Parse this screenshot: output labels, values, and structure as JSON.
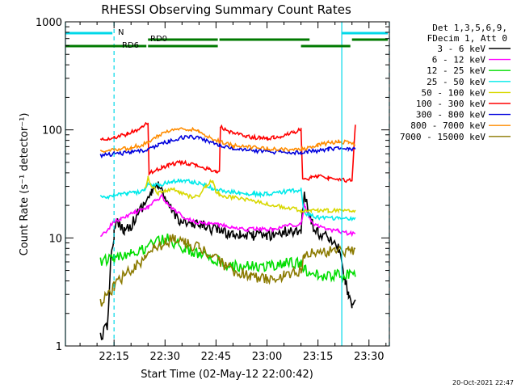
{
  "chart_data": {
    "type": "line",
    "title": "RHESSI Observing Summary Count Rates",
    "xlabel": "Start Time (02-May-12 22:00:42)",
    "ylabel": "Count Rate (s⁻¹ detector⁻¹)",
    "y_scale": "log",
    "ylim": [
      1,
      1000
    ],
    "x_unit": "minutes after 22:00",
    "xlim": [
      0.7,
      96
    ],
    "x_ticks": [
      15,
      30,
      45,
      60,
      75,
      90
    ],
    "x_tick_labels": [
      "22:15",
      "22:30",
      "22:45",
      "23:00",
      "23:15",
      "23:30"
    ],
    "y_ticks": [
      1,
      10,
      100,
      1000
    ],
    "y_tick_labels": [
      "1",
      "10",
      "100",
      "1000"
    ],
    "legend_header": [
      "Det 1,3,5,6,9,",
      "FDecim 1, Att 0"
    ],
    "legend_position": "right",
    "x_markers": [
      {
        "label": "N",
        "color": "#00d8e8",
        "bar_segments": [
          [
            0.7,
            15
          ],
          [
            82,
            96
          ]
        ],
        "solid_lines": [
          0.7,
          82
        ],
        "dashed_lines": [
          15,
          96
        ]
      },
      {
        "label": "RD0",
        "color": "#007a00",
        "bar_segments": [
          [
            25,
            46
          ],
          [
            46,
            73
          ],
          [
            85,
            96
          ]
        ],
        "solid_lines": [],
        "dashed_lines": []
      },
      {
        "label": "RD6",
        "color": "#007a00",
        "bar_segments": [
          [
            0.7,
            25
          ],
          [
            25,
            46
          ],
          [
            70,
            85
          ]
        ],
        "solid_lines": [],
        "dashed_lines": []
      }
    ],
    "series": [
      {
        "name": "3 - 6 keV",
        "color": "#000000",
        "x": [
          11,
          13,
          14,
          15,
          16,
          18,
          20,
          22,
          24,
          26,
          28,
          30,
          32,
          34,
          36,
          38,
          40,
          42,
          44,
          46,
          48,
          50,
          52,
          54,
          56,
          58,
          60,
          62,
          64,
          66,
          68,
          70,
          71,
          73,
          75,
          78,
          81,
          83,
          84,
          85,
          86
        ],
        "y": [
          1.2,
          1.5,
          6,
          11,
          14,
          12,
          13,
          17,
          21,
          26,
          32,
          22,
          18,
          15,
          14,
          13,
          13,
          13,
          12,
          12,
          11,
          11,
          11,
          10.5,
          10.5,
          10.5,
          10.5,
          11,
          11,
          11.5,
          11.5,
          12,
          25,
          14,
          11,
          10,
          8,
          4,
          3,
          2.5,
          2.5
        ]
      },
      {
        "name": "6 - 12 keV",
        "color": "#ff00ff",
        "x": [
          11,
          13,
          15,
          17,
          19,
          21,
          23,
          25,
          27,
          29,
          31,
          33,
          35,
          37,
          39,
          41,
          43,
          45,
          46,
          48,
          50,
          52,
          54,
          56,
          58,
          60,
          62,
          64,
          66,
          68,
          70,
          71,
          73,
          75,
          78,
          81,
          84,
          86
        ],
        "y": [
          10,
          12,
          14,
          15,
          16,
          17,
          18,
          19,
          22,
          24,
          20,
          18,
          16,
          15,
          14,
          14,
          13.5,
          13.5,
          13,
          13,
          12.5,
          12.5,
          12,
          12,
          12,
          12,
          12,
          12.5,
          13,
          13,
          13.5,
          20,
          14,
          13,
          12,
          11.5,
          11,
          11
        ]
      },
      {
        "name": "12 - 25 keV",
        "color": "#00dd00",
        "x": [
          11,
          15,
          20,
          24,
          27,
          30,
          33,
          36,
          40,
          44,
          46,
          50,
          55,
          60,
          65,
          70,
          71,
          75,
          80,
          84,
          86
        ],
        "y": [
          6,
          6.5,
          7,
          8,
          9,
          10,
          9,
          8,
          7,
          6.5,
          6,
          5.5,
          5.5,
          5.5,
          5.8,
          6,
          5,
          4.5,
          4.5,
          4.5,
          4.5
        ]
      },
      {
        "name": "25 - 50 keV",
        "color": "#00eaea",
        "x": [
          11,
          13,
          15,
          17,
          19,
          21,
          23,
          24,
          25,
          26,
          28,
          30,
          32,
          34,
          36,
          38,
          40,
          42,
          44,
          46,
          48,
          50,
          52,
          54,
          56,
          58,
          60,
          62,
          64,
          66,
          68,
          70,
          71,
          73,
          75,
          78,
          81,
          84,
          86
        ],
        "y": [
          24,
          24,
          25,
          25,
          26,
          26,
          27,
          28,
          33,
          30,
          31,
          32,
          33,
          34,
          34,
          33,
          32,
          31,
          29,
          28,
          27,
          26.5,
          26,
          25.5,
          25.5,
          25.5,
          25.5,
          26,
          26.5,
          27,
          27.5,
          28,
          17,
          16,
          15.5,
          15.5,
          15,
          15,
          15
        ]
      },
      {
        "name": "50 - 100 keV",
        "color": "#d8d800",
        "x": [
          24,
          25,
          26,
          28,
          30,
          32,
          34,
          36,
          38,
          40,
          42,
          44,
          45,
          46,
          70,
          71,
          73,
          75,
          78,
          81,
          84,
          86
        ],
        "y": [
          28,
          36,
          30,
          26,
          27,
          28,
          27,
          25,
          24,
          24,
          30,
          34,
          27,
          25,
          18,
          18,
          18,
          18,
          18,
          18,
          18,
          18
        ]
      },
      {
        "name": "100 - 300 keV",
        "color": "#ff0000",
        "x": [
          11,
          13,
          15,
          17,
          19,
          21,
          23,
          25,
          25.3,
          27,
          29,
          31,
          33,
          35,
          37,
          39,
          41,
          43,
          45,
          46,
          46.3,
          48,
          50,
          52,
          54,
          56,
          58,
          60,
          62,
          64,
          66,
          68,
          70,
          70.5,
          73,
          75,
          78,
          81,
          84,
          85,
          86
        ],
        "y": [
          80,
          82,
          85,
          88,
          92,
          98,
          105,
          115,
          40,
          42,
          45,
          47,
          49,
          50,
          49,
          47,
          45,
          43,
          41,
          40,
          108,
          100,
          94,
          90,
          87,
          85,
          84,
          84,
          85,
          87,
          90,
          95,
          102,
          35,
          36,
          37,
          36,
          35,
          34,
          34,
          110
        ]
      },
      {
        "name": "300 - 800 keV",
        "color": "#0000dd",
        "x": [
          11,
          15,
          20,
          25,
          28,
          31,
          34,
          37,
          40,
          43,
          46,
          50,
          55,
          60,
          65,
          70,
          72,
          75,
          78,
          81,
          84,
          86
        ],
        "y": [
          58,
          60,
          62,
          66,
          72,
          78,
          84,
          86,
          84,
          78,
          72,
          67,
          64,
          63,
          62,
          62,
          63,
          64,
          66,
          68,
          68,
          66
        ]
      },
      {
        "name": "800 - 7000 keV",
        "color": "#ff8c00",
        "x": [
          11,
          15,
          20,
          25,
          28,
          31,
          34,
          37,
          40,
          43,
          46,
          50,
          55,
          60,
          65,
          70,
          72,
          75,
          78,
          81,
          84,
          86
        ],
        "y": [
          63,
          65,
          68,
          76,
          88,
          98,
          104,
          102,
          96,
          86,
          78,
          72,
          69,
          67,
          66,
          66,
          68,
          72,
          76,
          78,
          76,
          74
        ]
      },
      {
        "name": "7000 - 15000 keV",
        "color": "#8b7a00",
        "x": [
          11,
          13,
          15,
          18,
          21,
          24,
          27,
          30,
          33,
          36,
          40,
          44,
          46,
          50,
          55,
          60,
          65,
          70,
          71,
          75,
          80,
          84,
          86
        ],
        "y": [
          2.5,
          3,
          3.5,
          4.5,
          5.5,
          6.5,
          8,
          9,
          10,
          9,
          8,
          7,
          6,
          5,
          4.5,
          4.2,
          4.5,
          5,
          7,
          7.5,
          7.5,
          7.5,
          7.5
        ]
      }
    ],
    "timestamp": "20-Oct-2021 22:47"
  }
}
